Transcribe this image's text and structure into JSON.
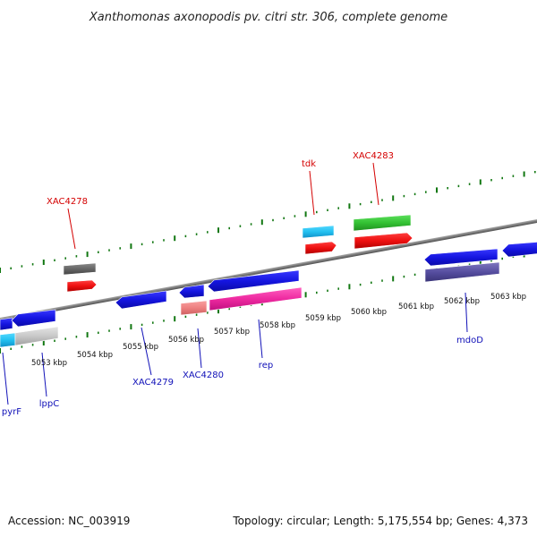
{
  "title": "Xanthomonas axonopodis pv. citri str. 306, complete genome",
  "footer": {
    "accession": "Accession: NC_003919",
    "summary": "Topology: circular; Length: 5,175,554 bp; Genes: 4,373"
  },
  "colors": {
    "forward_label": "#d40000",
    "reverse_label": "#1010b8",
    "backbone": "#888888",
    "ticks": "#117711"
  },
  "ticks": [
    "5053 kbp",
    "5054 kbp",
    "5055 kbp",
    "5056 kbp",
    "5057 kbp",
    "5058 kbp",
    "5059 kbp",
    "5060 kbp",
    "5061 kbp",
    "5062 kbp",
    "5063 kbp"
  ],
  "gene_labels": {
    "forward": [
      "XAC4278",
      "tdk",
      "XAC4283"
    ],
    "reverse": [
      "pyrF",
      "lppC",
      "XAC4279",
      "XAC4280",
      "rep",
      "mdoD"
    ]
  }
}
